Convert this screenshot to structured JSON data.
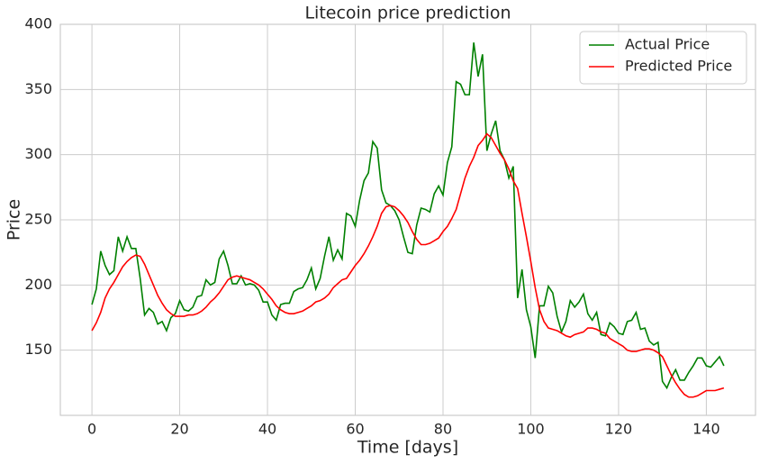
{
  "chart_data": {
    "type": "line",
    "title": "Litecoin price prediction",
    "x_label": "Time [days]",
    "y_label": "Price",
    "x": [
      0,
      1,
      2,
      3,
      4,
      5,
      6,
      7,
      8,
      9,
      10,
      11,
      12,
      13,
      14,
      15,
      16,
      17,
      18,
      19,
      20,
      21,
      22,
      23,
      24,
      25,
      26,
      27,
      28,
      29,
      30,
      31,
      32,
      33,
      34,
      35,
      36,
      37,
      38,
      39,
      40,
      41,
      42,
      43,
      44,
      45,
      46,
      47,
      48,
      49,
      50,
      51,
      52,
      53,
      54,
      55,
      56,
      57,
      58,
      59,
      60,
      61,
      62,
      63,
      64,
      65,
      66,
      67,
      68,
      69,
      70,
      71,
      72,
      73,
      74,
      75,
      76,
      77,
      78,
      79,
      80,
      81,
      82,
      83,
      84,
      85,
      86,
      87,
      88,
      89,
      90,
      91,
      92,
      93,
      94,
      95,
      96,
      97,
      98,
      99,
      100,
      101,
      102,
      103,
      104,
      105,
      106,
      107,
      108,
      109,
      110,
      111,
      112,
      113,
      114,
      115,
      116,
      117,
      118,
      119,
      120,
      121,
      122,
      123,
      124,
      125,
      126,
      127,
      128,
      129,
      130,
      131,
      132,
      133,
      134,
      135,
      136,
      137,
      138,
      139,
      140,
      141,
      142,
      143,
      144
    ],
    "series": [
      {
        "name": "Actual Price",
        "color": "#008000",
        "values": [
          185,
          197,
          226,
          215,
          208,
          211,
          237,
          226,
          237,
          228,
          228,
          205,
          177,
          182,
          179,
          170,
          172,
          165,
          175,
          178,
          188,
          181,
          180,
          183,
          191,
          192,
          204,
          200,
          202,
          220,
          226,
          215,
          201,
          201,
          207,
          200,
          201,
          200,
          196,
          187,
          187,
          177,
          173,
          185,
          186,
          186,
          195,
          197,
          198,
          204,
          213,
          197,
          205,
          222,
          237,
          219,
          227,
          220,
          255,
          253,
          245,
          265,
          280,
          286,
          310,
          305,
          273,
          263,
          261,
          257,
          250,
          237,
          225,
          224,
          246,
          259,
          258,
          256,
          270,
          276,
          269,
          294,
          306,
          356,
          354,
          346,
          346,
          386,
          360,
          377,
          303,
          316,
          326,
          303,
          296,
          282,
          291,
          190,
          212,
          181,
          168,
          144,
          184,
          184,
          199,
          194,
          176,
          164,
          172,
          188,
          183,
          187,
          193,
          178,
          173,
          179,
          162,
          161,
          171,
          168,
          163,
          162,
          172,
          173,
          179,
          166,
          167,
          157,
          154,
          156,
          126,
          121,
          129,
          135,
          127,
          127,
          133,
          138,
          144,
          144,
          138,
          137,
          141,
          145,
          138
        ]
      },
      {
        "name": "Predicted Price",
        "color": "#ff0000",
        "values": [
          165,
          171,
          179,
          190,
          197,
          202,
          208,
          214,
          218,
          221,
          223,
          222,
          216,
          208,
          200,
          192,
          186,
          181,
          178,
          176,
          176,
          176,
          177,
          177,
          178,
          180,
          183,
          187,
          190,
          194,
          199,
          204,
          206,
          207,
          206,
          205,
          204,
          202,
          200,
          197,
          193,
          189,
          184,
          181,
          179,
          178,
          178,
          179,
          180,
          182,
          184,
          187,
          188,
          190,
          193,
          198,
          201,
          204,
          205,
          210,
          215,
          219,
          224,
          230,
          237,
          245,
          255,
          260,
          261,
          260,
          257,
          253,
          248,
          241,
          235,
          231,
          231,
          232,
          234,
          236,
          241,
          245,
          251,
          258,
          270,
          282,
          291,
          298,
          307,
          311,
          316,
          313,
          307,
          301,
          296,
          289,
          280,
          274,
          255,
          237,
          218,
          198,
          181,
          172,
          167,
          166,
          165,
          163,
          161,
          160,
          162,
          163,
          164,
          167,
          167,
          166,
          164,
          163,
          159,
          157,
          155,
          153,
          150,
          149,
          149,
          150,
          151,
          151,
          150,
          148,
          145,
          138,
          131,
          125,
          120,
          116,
          114,
          114,
          115,
          117,
          119,
          119,
          119,
          120,
          121
        ]
      }
    ],
    "xlim": [
      -7.2,
      151.2
    ],
    "ylim": [
      100,
      400
    ],
    "xticks": [
      0,
      20,
      40,
      60,
      80,
      100,
      120,
      140
    ],
    "yticks": [
      150,
      200,
      250,
      300,
      350,
      400
    ],
    "grid": true,
    "legend": "upper-right"
  }
}
